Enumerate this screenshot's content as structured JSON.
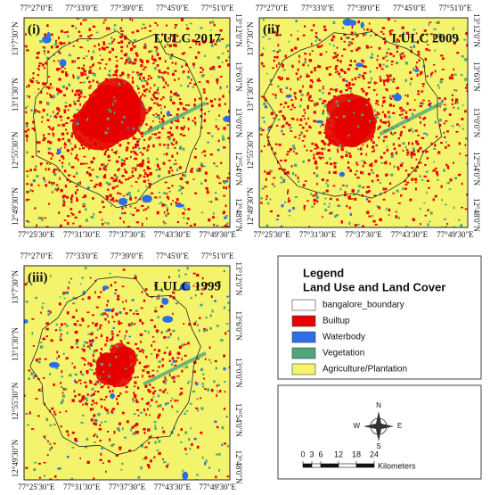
{
  "panels": [
    {
      "label": "(i)",
      "title": "LULC 2017",
      "top_ticks": [
        "77°27'0\"E",
        "77°33'0\"E",
        "77°39'0\"E",
        "77°45'0\"E",
        "77°51'0\"E"
      ],
      "bottom_ticks": [
        "77°25'30\"E",
        "77°31'30\"E",
        "77°37'30\"E",
        "77°43'30\"E",
        "77°49'30\"E"
      ],
      "left_ticks": [
        "13°7'30\"N",
        "13°1'30\"N",
        "12°55'30\"N",
        "12°49'30\"N"
      ],
      "right_ticks": [
        "13°12'0\"N",
        "13°6'0\"N",
        "13°0'0\"N",
        "12°54'0\"N",
        "12°48'0\"N"
      ]
    },
    {
      "label": "(ii)",
      "title": "LULC 2009",
      "top_ticks": [
        "77°27'0\"E",
        "77°33'0\"E",
        "77°39'0\"E",
        "77°45'0\"E",
        "77°51'0\"E"
      ],
      "bottom_ticks": [
        "77°25'30\"E",
        "77°31'30\"E",
        "77°37'30\"E",
        "77°43'30\"E",
        "77°49'30\"E"
      ],
      "left_ticks": [
        "13°7'30\"N",
        "13°1'30\"N",
        "12°55'30\"N",
        "12°49'30\"N"
      ],
      "right_ticks": [
        "13°12'0\"N",
        "13°6'0\"N",
        "13°0'0\"N",
        "12°54'0\"N",
        "12°48'0\"N"
      ]
    },
    {
      "label": "(iii)",
      "title": "LULC 1999",
      "top_ticks": [
        "77°27'0\"E",
        "77°33'0\"E",
        "77°39'0\"E",
        "77°45'0\"E",
        "77°51'0\"E"
      ],
      "bottom_ticks": [
        "77°25'30\"E",
        "77°31'30\"E",
        "77°37'30\"E",
        "77°43'30\"E",
        "77°49'30\"E"
      ],
      "left_ticks": [
        "13°7'30\"N",
        "13°1'30\"N",
        "12°55'30\"N",
        "12°49'30\"N"
      ],
      "right_ticks": [
        "13°12'0\"N",
        "13°6'0\"N",
        "13°0'0\"N",
        "12°54'0\"N",
        "12°48'0\"N"
      ]
    }
  ],
  "legend": {
    "title": "Legend",
    "subtitle": "Land Use and Land Cover",
    "items": [
      {
        "label": "bangalore_boundary",
        "color": "#ffffff"
      },
      {
        "label": "Builtup",
        "color": "#e60000"
      },
      {
        "label": "Waterbody",
        "color": "#2a6fe6"
      },
      {
        "label": "Vegetation",
        "color": "#4ea67a"
      },
      {
        "label": "Agriculture/Plantation",
        "color": "#f4f46c"
      }
    ]
  },
  "north_arrow": {
    "n": "N",
    "e": "E",
    "s": "S",
    "w": "W"
  },
  "scale_bar": {
    "ticks": [
      0,
      3,
      6,
      12,
      18,
      24
    ],
    "unit": "Kilometers"
  }
}
